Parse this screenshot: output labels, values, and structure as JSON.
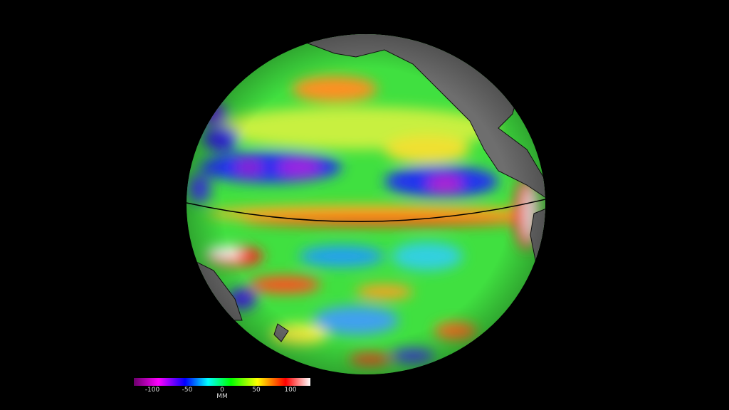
{
  "colorbar": {
    "unit": "MM",
    "ticks": [
      "-100",
      "-50",
      "0",
      "50",
      "100"
    ],
    "range": [
      -130,
      130
    ],
    "colors": [
      "#6a006a",
      "#ff00ff",
      "#0000ff",
      "#00ffff",
      "#00ff00",
      "#ffff00",
      "#ff0000",
      "#ffffff"
    ]
  },
  "map": {
    "projection": "orthographic",
    "land_color": "#6e6e6e",
    "equator_line_color": "#000000"
  }
}
